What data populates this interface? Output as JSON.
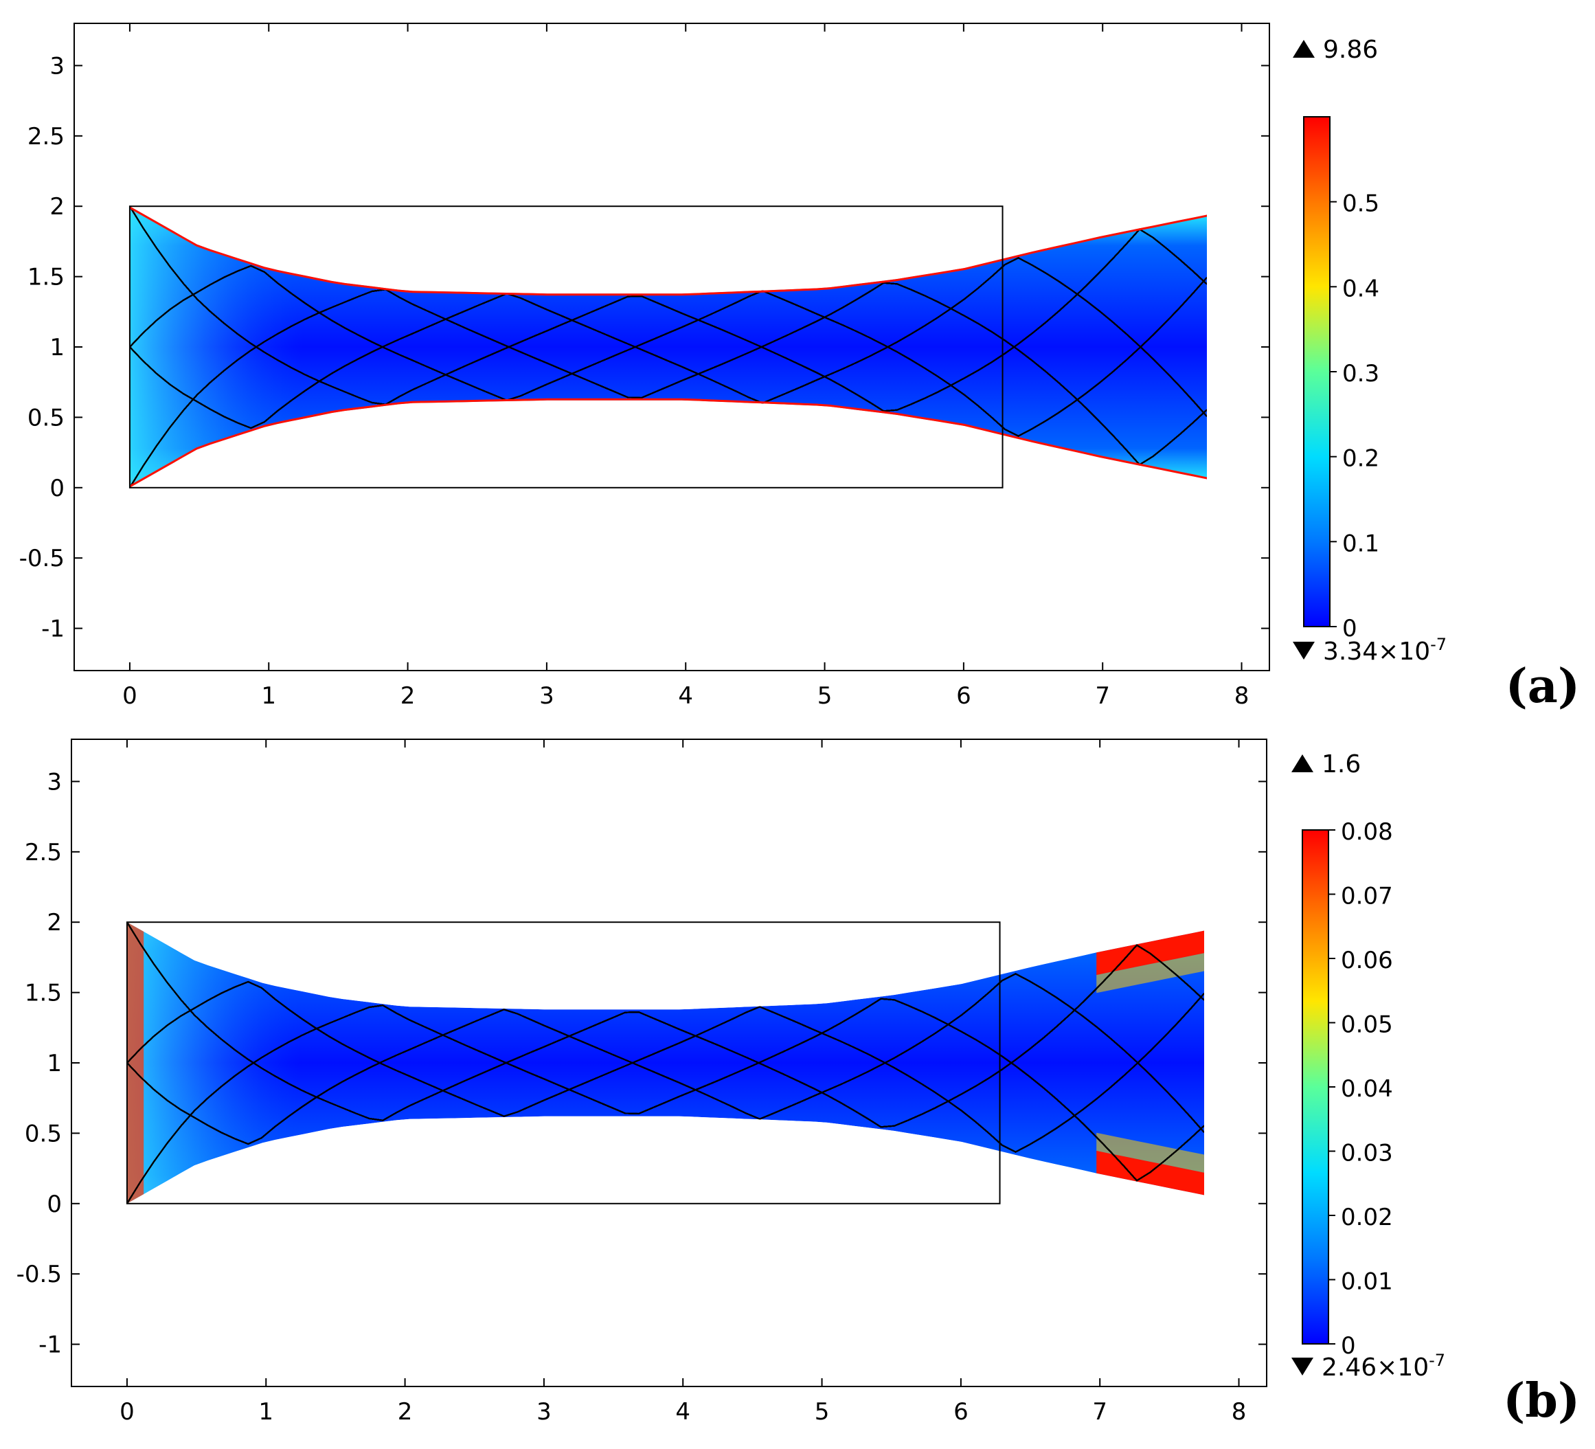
{
  "chart_data": [
    {
      "type": "heatmap",
      "panel_label": "(a)",
      "xlim": [
        -0.4,
        8.2
      ],
      "ylim": [
        -1.3,
        3.3
      ],
      "x_ticks": [
        0,
        1,
        2,
        3,
        4,
        5,
        6,
        7,
        8
      ],
      "y_ticks": [
        -1,
        -0.5,
        0,
        0.5,
        1,
        1.5,
        2,
        2.5,
        3
      ],
      "x_tick_labels": [
        "0",
        "1",
        "2",
        "3",
        "4",
        "5",
        "6",
        "7",
        "8"
      ],
      "y_tick_labels": [
        "-1",
        "-0.5",
        "0",
        "0.5",
        "1",
        "1.5",
        "2",
        "2.5",
        "3"
      ],
      "grid": false,
      "reference_rectangle": {
        "x": [
          0,
          6.28
        ],
        "y": [
          0,
          2
        ]
      },
      "deformed_shape": {
        "left_x": 0,
        "right_x": 7.75,
        "top": [
          [
            0,
            2
          ],
          [
            0.5,
            1.72
          ],
          [
            1,
            1.56
          ],
          [
            1.5,
            1.46
          ],
          [
            2,
            1.4
          ],
          [
            3,
            1.38
          ],
          [
            4,
            1.38
          ],
          [
            5,
            1.42
          ],
          [
            5.5,
            1.48
          ],
          [
            6,
            1.56
          ],
          [
            6.5,
            1.68
          ],
          [
            7,
            1.79
          ],
          [
            7.5,
            1.89
          ],
          [
            7.75,
            1.94
          ]
        ],
        "bottom": [
          [
            0,
            0
          ],
          [
            0.5,
            0.28
          ],
          [
            1,
            0.44
          ],
          [
            1.5,
            0.54
          ],
          [
            2,
            0.6
          ],
          [
            3,
            0.62
          ],
          [
            4,
            0.62
          ],
          [
            5,
            0.58
          ],
          [
            5.5,
            0.52
          ],
          [
            6,
            0.44
          ],
          [
            6.5,
            0.32
          ],
          [
            7,
            0.21
          ],
          [
            7.5,
            0.11
          ],
          [
            7.75,
            0.06
          ]
        ]
      },
      "colorbar": {
        "min": 0,
        "max": 0.6,
        "ticks": [
          0,
          0.1,
          0.2,
          0.3,
          0.4,
          0.5
        ],
        "tick_labels": [
          "0",
          "0.1",
          "0.2",
          "0.3",
          "0.4",
          "0.5"
        ],
        "colormap": "jet",
        "colors": [
          "#0000ff",
          "#0078ff",
          "#00dcff",
          "#5aff9a",
          "#ffe600",
          "#ff7800",
          "#ff0000"
        ]
      },
      "max_label": "9.86",
      "min_label_base": "3.34×10",
      "min_label_exp": "-7"
    },
    {
      "type": "heatmap",
      "panel_label": "(b)",
      "xlim": [
        -0.4,
        8.2
      ],
      "ylim": [
        -1.3,
        3.3
      ],
      "x_ticks": [
        0,
        1,
        2,
        3,
        4,
        5,
        6,
        7,
        8
      ],
      "y_ticks": [
        -1,
        -0.5,
        0,
        0.5,
        1,
        1.5,
        2,
        2.5,
        3
      ],
      "x_tick_labels": [
        "0",
        "1",
        "2",
        "3",
        "4",
        "5",
        "6",
        "7",
        "8"
      ],
      "y_tick_labels": [
        "-1",
        "-0.5",
        "0",
        "0.5",
        "1",
        "1.5",
        "2",
        "2.5",
        "3"
      ],
      "grid": false,
      "reference_rectangle": {
        "x": [
          0,
          6.28
        ],
        "y": [
          0,
          2
        ]
      },
      "deformed_shape": {
        "left_x": 0,
        "right_x": 7.75,
        "top": [
          [
            0,
            2
          ],
          [
            0.5,
            1.72
          ],
          [
            1,
            1.56
          ],
          [
            1.5,
            1.46
          ],
          [
            2,
            1.4
          ],
          [
            3,
            1.38
          ],
          [
            4,
            1.38
          ],
          [
            5,
            1.42
          ],
          [
            5.5,
            1.48
          ],
          [
            6,
            1.56
          ],
          [
            6.5,
            1.68
          ],
          [
            7,
            1.79
          ],
          [
            7.5,
            1.89
          ],
          [
            7.75,
            1.94
          ]
        ],
        "bottom": [
          [
            0,
            0
          ],
          [
            0.5,
            0.28
          ],
          [
            1,
            0.44
          ],
          [
            1.5,
            0.54
          ],
          [
            2,
            0.6
          ],
          [
            3,
            0.62
          ],
          [
            4,
            0.62
          ],
          [
            5,
            0.58
          ],
          [
            5.5,
            0.52
          ],
          [
            6,
            0.44
          ],
          [
            6.5,
            0.32
          ],
          [
            7,
            0.21
          ],
          [
            7.5,
            0.11
          ],
          [
            7.75,
            0.06
          ]
        ]
      },
      "colorbar": {
        "min": 0,
        "max": 0.08,
        "ticks": [
          0,
          0.01,
          0.02,
          0.03,
          0.04,
          0.05,
          0.06,
          0.07,
          0.08
        ],
        "tick_labels": [
          "0",
          "0.01",
          "0.02",
          "0.03",
          "0.04",
          "0.05",
          "0.06",
          "0.07",
          "0.08"
        ],
        "colormap": "jet",
        "colors": [
          "#0000ff",
          "#0078ff",
          "#00dcff",
          "#5aff9a",
          "#ffe600",
          "#ff7800",
          "#ff0000"
        ]
      },
      "max_label": "1.6",
      "min_label_base": "2.46×10",
      "min_label_exp": "-7"
    }
  ]
}
